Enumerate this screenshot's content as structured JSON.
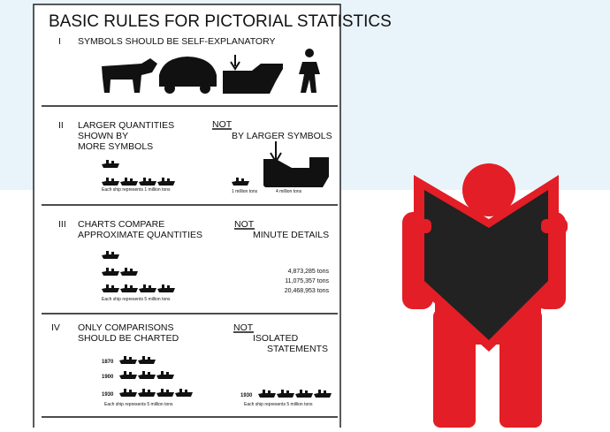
{
  "title": "BASIC RULES FOR PICTORIAL STATISTICS",
  "sections": [
    {
      "numeral": "I",
      "lines": [
        "SYMBOLS SHOULD BE SELF-EXPLANATORY"
      ]
    },
    {
      "numeral": "II",
      "lines": [
        "LARGER QUANTITIES",
        "SHOWN BY",
        "MORE SYMBOLS"
      ],
      "not": "NOT",
      "contrast": [
        "BY LARGER SYMBOLS"
      ],
      "caption": "Each ship represents 1 million tons",
      "right_captions": [
        "1 million tons",
        "4 million tons"
      ]
    },
    {
      "numeral": "III",
      "lines": [
        "CHARTS COMPARE",
        "APPROXIMATE QUANTITIES"
      ],
      "not": "NOT",
      "contrast": [
        "MINUTE DETAILS"
      ],
      "caption": "Each ship represents 5 million tons",
      "amounts": [
        "4,873,285 tons",
        "11,075,357 tons",
        "20,468,953 tons"
      ]
    },
    {
      "numeral": "IV",
      "lines": [
        "ONLY COMPARISONS",
        "SHOULD BE CHARTED"
      ],
      "not": "NOT",
      "contrast": [
        "ISOLATED",
        "STATEMENTS"
      ],
      "caption": "Each ship represents 5 million tons",
      "years": [
        "1870",
        "1900",
        "1930"
      ],
      "right_year": "1930",
      "right_caption": "Each ship represents 5 million tons"
    }
  ]
}
